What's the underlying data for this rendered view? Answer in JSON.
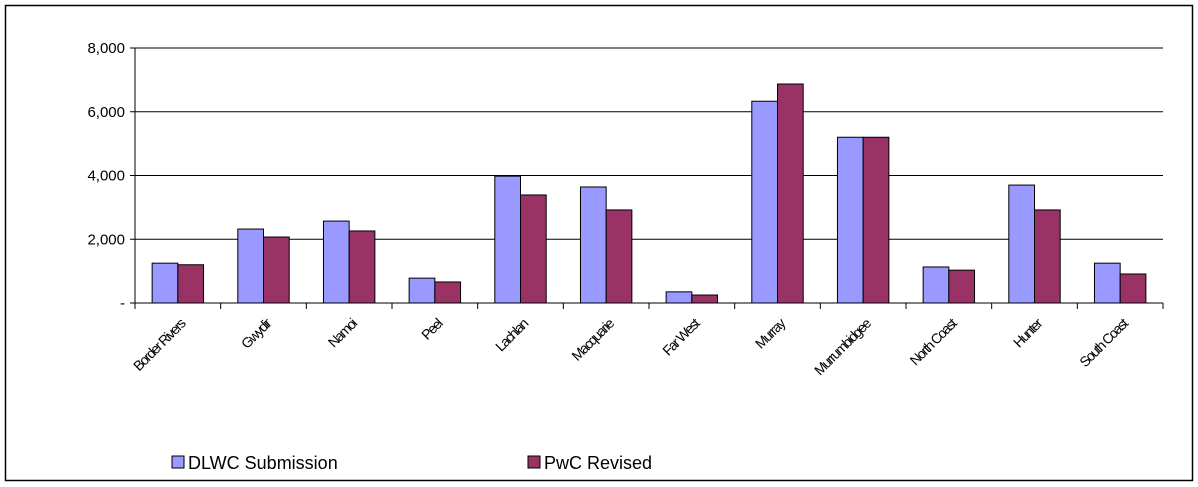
{
  "chart_data": {
    "type": "bar",
    "categories": [
      "Border Rivers",
      "Gwydir",
      "Namoi",
      "Peel",
      "Lachlan",
      "Macquarie",
      "Far West",
      "Murray",
      "Murrumbidgee",
      "North Coast",
      "Hunter",
      "South Coast"
    ],
    "series": [
      {
        "name": "DLWC Submission",
        "color": "#9999ff",
        "values": [
          1250,
          2320,
          2570,
          780,
          3980,
          3640,
          350,
          6330,
          5200,
          1130,
          3700,
          1250
        ]
      },
      {
        "name": "PwC Revised",
        "color": "#993366",
        "values": [
          1200,
          2070,
          2260,
          660,
          3390,
          2920,
          250,
          6870,
          5200,
          1030,
          2920,
          910
        ]
      }
    ],
    "ylim": [
      0,
      8000
    ],
    "yticks": [
      {
        "value": 0,
        "label": "-"
      },
      {
        "value": 2000,
        "label": "2,000"
      },
      {
        "value": 4000,
        "label": "4,000"
      },
      {
        "value": 6000,
        "label": "6,000"
      },
      {
        "value": 8000,
        "label": "8,000"
      }
    ],
    "grid": true,
    "legend": "bottom"
  }
}
